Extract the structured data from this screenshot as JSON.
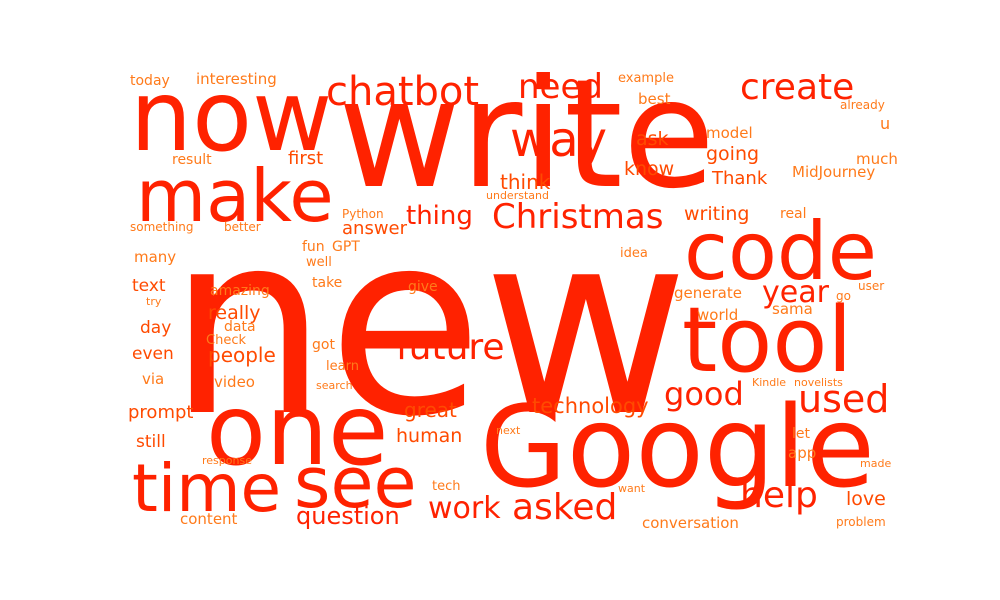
{
  "colors": {
    "background": "#ffffff",
    "dark": "#ff2200",
    "mid": "#ff4a00",
    "light": "#ff7a1a"
  },
  "words": [
    "new",
    "write",
    "Google",
    "now",
    "one",
    "tool",
    "code",
    "make",
    "time",
    "see",
    "way",
    "Christmas",
    "chatbot",
    "need",
    "create",
    "future",
    "used",
    "help",
    "asked",
    "work",
    "good",
    "year",
    "thing",
    "question",
    "technology",
    "people",
    "really",
    "answer",
    "great",
    "human",
    "think",
    "writing",
    "going",
    "love",
    "know",
    "Thank",
    "ask",
    "first",
    "day",
    "prompt",
    "even",
    "text",
    "still",
    "many",
    "via",
    "video",
    "content",
    "conversation",
    "generate",
    "model",
    "MidJourney",
    "much",
    "best",
    "world",
    "sama",
    "app",
    "let",
    "interesting",
    "today",
    "u",
    "example",
    "result",
    "give",
    "take",
    "learn",
    "fun",
    "GPT",
    "data",
    "amazing",
    "something",
    "better",
    "Python",
    "understand",
    "real",
    "already",
    "idea",
    "well",
    "user",
    "go",
    "got",
    "Check",
    "search",
    "Kindle",
    "novelists",
    "tech",
    "made",
    "next",
    "response",
    "want",
    "problem",
    "try"
  ]
}
